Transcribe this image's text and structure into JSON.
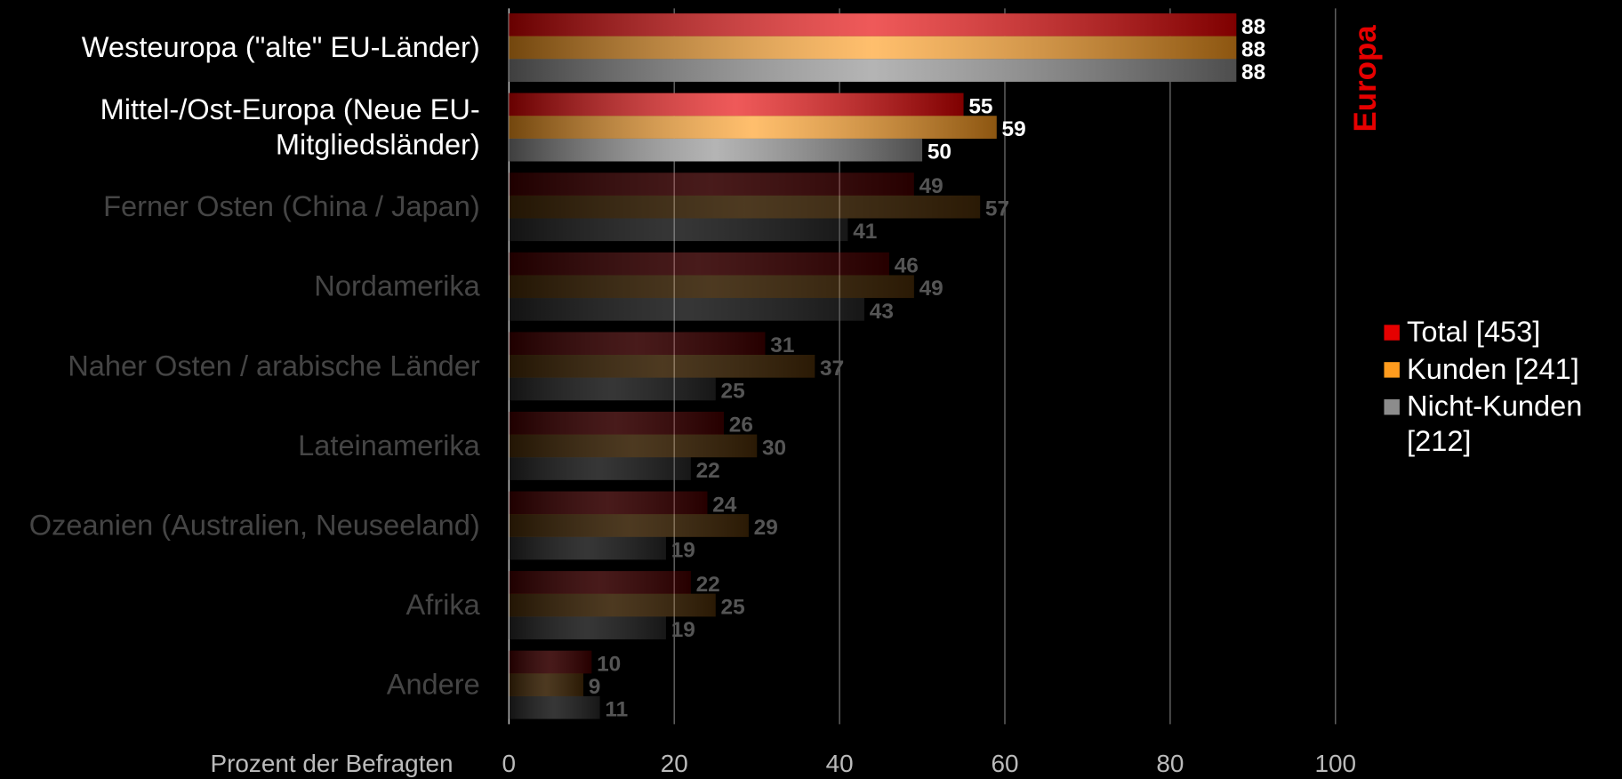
{
  "chart_data": {
    "type": "hbar",
    "categories": [
      "Westeuropa (\"alte\" EU-Länder)",
      "Mittel-/Ost-Europa (Neue EU-Mitgliedsländer)",
      "Ferner Osten (China / Japan)",
      "Nordamerika",
      "Naher Osten / arabische Länder",
      "Lateinamerika",
      "Ozeanien (Australien, Neuseeland)",
      "Afrika",
      "Andere"
    ],
    "series": [
      {
        "name": "Total [453]",
        "color": "#e60000",
        "values": [
          88,
          55,
          49,
          46,
          31,
          26,
          24,
          22,
          10
        ]
      },
      {
        "name": "Kunden [241]",
        "color": "#ff9c1e",
        "values": [
          88,
          59,
          57,
          49,
          37,
          30,
          29,
          25,
          9
        ]
      },
      {
        "name": "Nicht-Kunden [212]",
        "color": "#8c8c8c",
        "values": [
          88,
          50,
          41,
          43,
          25,
          22,
          19,
          19,
          11
        ]
      }
    ],
    "xlabel": "Prozent der Befragten",
    "annotation": "Europa",
    "xlim": [
      0,
      100
    ],
    "xticks": [
      0,
      20,
      40,
      60,
      80,
      100
    ],
    "grid": true,
    "legend": "right"
  }
}
